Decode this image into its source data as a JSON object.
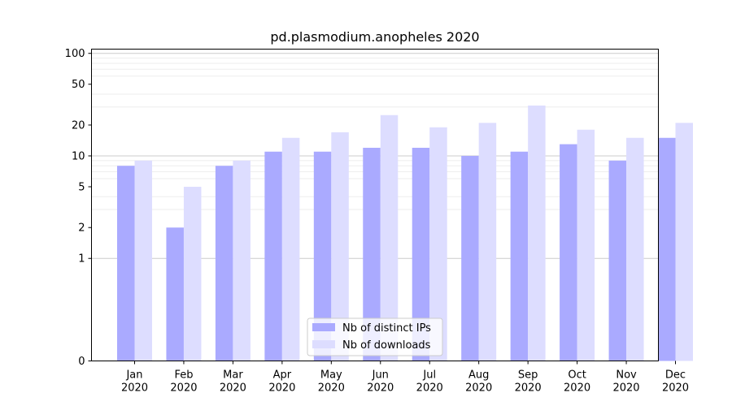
{
  "chart_data": {
    "type": "bar",
    "title": "pd.plasmodium.anopheles 2020",
    "xlabel": "",
    "ylabel": "",
    "categories": [
      "Jan\n2020",
      "Feb\n2020",
      "Mar\n2020",
      "Apr\n2020",
      "May\n2020",
      "Jun\n2020",
      "Jul\n2020",
      "Aug\n2020",
      "Sep\n2020",
      "Oct\n2020",
      "Nov\n2020",
      "Dec\n2020"
    ],
    "series": [
      {
        "name": "Nb of distinct IPs",
        "color": "#aaaaff",
        "values": [
          8,
          2,
          8,
          11,
          11,
          12,
          12,
          10,
          11,
          13,
          9,
          15
        ]
      },
      {
        "name": "Nb of downloads",
        "color": "#ddddff",
        "values": [
          9,
          5,
          9,
          15,
          17,
          25,
          19,
          21,
          31,
          18,
          15,
          21
        ]
      }
    ],
    "y_scale": "symlog",
    "ylim": [
      0,
      110
    ],
    "yticks": [
      0,
      1,
      2,
      5,
      10,
      20,
      50,
      100
    ],
    "ytick_labels": [
      "0",
      "1",
      "2",
      "5",
      "10",
      "20",
      "50",
      "100"
    ],
    "grid": true,
    "legend_position": "bottom-center"
  }
}
